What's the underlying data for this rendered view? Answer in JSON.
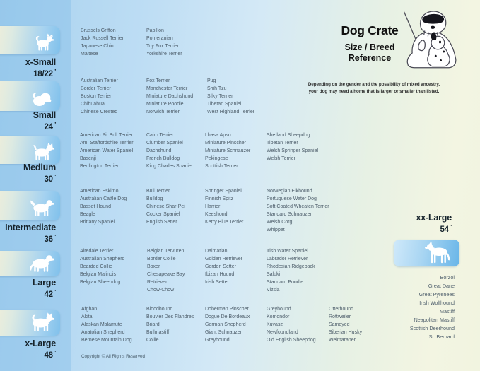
{
  "header": {
    "title": "Dog Crate",
    "subtitle_line1": "Size / Breed",
    "subtitle_line2": "Reference",
    "note_line1": "Depending on the gender and the possibility of mixed ancestry,",
    "note_line2": "your dog may need a home that is larger or smaller than listed.",
    "illustration": "sheepdog-teacher-with-pointer-and-dalmatian-puppy"
  },
  "inch_mark": "″",
  "copyright": "Copyright © All Rights Reserved",
  "colors": {
    "background_blue": "#a7d1ee",
    "background_green": "#f3f5e2",
    "tile_gradient_start": "#f2efd8",
    "tile_gradient_end": "#7fc0eb",
    "breed_text": "#4e5e6b",
    "label_text": "#16232b"
  },
  "size_groups": [
    {
      "label": "x-Small",
      "inches": "18/22",
      "dog_icon": "papillon-icon",
      "columns": [
        [
          "Brussels Griffon",
          "Jack Russell Terrier",
          "Japanese Chin",
          "Maltese"
        ],
        [
          "Papillon",
          "Pomeranian",
          "Toy Fox Terrier",
          "Yorkshire Terrier"
        ]
      ]
    },
    {
      "label": "Small",
      "inches": "24",
      "dog_icon": "shih-tzu-icon",
      "columns": [
        [
          "Australian Terrier",
          "Border Terrier",
          "Boston Terrier",
          "Chihuahua",
          "Chinese Crested"
        ],
        [
          "Fox Terrier",
          "Manchester Terrier",
          "Miniature Dachshund",
          "Miniature Poodle",
          "Norwich Terrier"
        ],
        [
          "Pug",
          "Shih Tzu",
          "Silky Terrier",
          "Tibetan Spaniel",
          "West Highland Terrier"
        ]
      ]
    },
    {
      "label": "Medium",
      "inches": "30",
      "dog_icon": "westie-icon",
      "columns": [
        [
          "American Pit Bull Terrier",
          "Am. Staffordshire Terrier",
          "American Water Spaniel",
          "Basenji",
          "Bedlington Terrier"
        ],
        [
          "Cairn Terrier",
          "Clumber Spaniel",
          "Dachshund",
          "French Bulldog",
          "King Charles Spaniel"
        ],
        [
          "Lhasa Apso",
          "Miniature Pinscher",
          "Miniature Schnauzer",
          "Pekingese",
          "Scottish Terrier"
        ],
        [
          "Shetland Sheepdog",
          "Tibetan Terrier",
          "Welsh Springer Spaniel",
          "Welsh Terrier"
        ]
      ]
    },
    {
      "label": "Intermediate",
      "inches": "36",
      "dog_icon": "spaniel-icon",
      "columns": [
        [
          "American Eskimo",
          "Australian Cattle Dog",
          "Basset Hound",
          "Beagle",
          "Brittany Spaniel"
        ],
        [
          "Bull Terrier",
          "Bulldog",
          "Chinese Shar-Pei",
          "Cocker Spaniel",
          "English Setter"
        ],
        [
          "Springer Spaniel",
          "Finnish Spitz",
          "Harrier",
          "Keeshond",
          "Kerry Blue Terrier"
        ],
        [
          "Norwegian Elkhound",
          "Portuguese Water Dog",
          "Soft Coated Wheaten Terrier",
          "Standard Schnauzer",
          "Welsh Corgi",
          "Whippet"
        ]
      ]
    },
    {
      "label": "Large",
      "inches": "42",
      "dog_icon": "retriever-icon",
      "columns": [
        [
          "Airedale Terrier",
          "Australian Shepherd",
          "Bearded Collie",
          "Belgian Malinois",
          "Belgian Sheepdog"
        ],
        [
          "Belgian Tervuren",
          "Border Collie",
          "Boxer",
          "Chesapeake Bay Retriever",
          "Chow-Chow"
        ],
        [
          "Dalmatian",
          "Golden Retriever",
          "Gordon Setter",
          "Ibizan Hound",
          "Irish Setter"
        ],
        [
          "Irish Water Spaniel",
          "Labrador Retriever",
          "Rhodesian Ridgeback",
          "Saluki",
          "Standard Poodle",
          "Vizsla"
        ]
      ]
    },
    {
      "label": "x-Large",
      "inches": "48",
      "dog_icon": "akita-icon",
      "columns": [
        [
          "Afghan",
          "Akita",
          "Alaskan Malamute",
          "Anatolian Shepherd",
          "Bernese Mountain Dog"
        ],
        [
          "Bloodhound",
          "Bouvier Des Flandres",
          "Briard",
          "Bullmastiff",
          "Collie"
        ],
        [
          "Doberman Pinscher",
          "Dogue De Bordeaux",
          "German Shepherd",
          "Giant Schnauzer",
          "Greyhound"
        ],
        [
          "Greyhound",
          "Komondor",
          "Kuvasz",
          "Newfoundland",
          "Old English Sheepdog"
        ],
        [
          "Otterhound",
          "Rottweiler",
          "Samoyed",
          "Siberian Husky",
          "Weimaraner"
        ]
      ]
    }
  ],
  "xx_large_group": {
    "label": "xx-Large",
    "inches": "54",
    "dog_icon": "great-dane-icon",
    "breeds": [
      "Borzoi",
      "Great Dane",
      "Great Pyrenees",
      "Irish Wolfhound",
      "Mastiff",
      "Neapolitan Mastiff",
      "Scottish Deerhound",
      "St. Bernard"
    ]
  }
}
